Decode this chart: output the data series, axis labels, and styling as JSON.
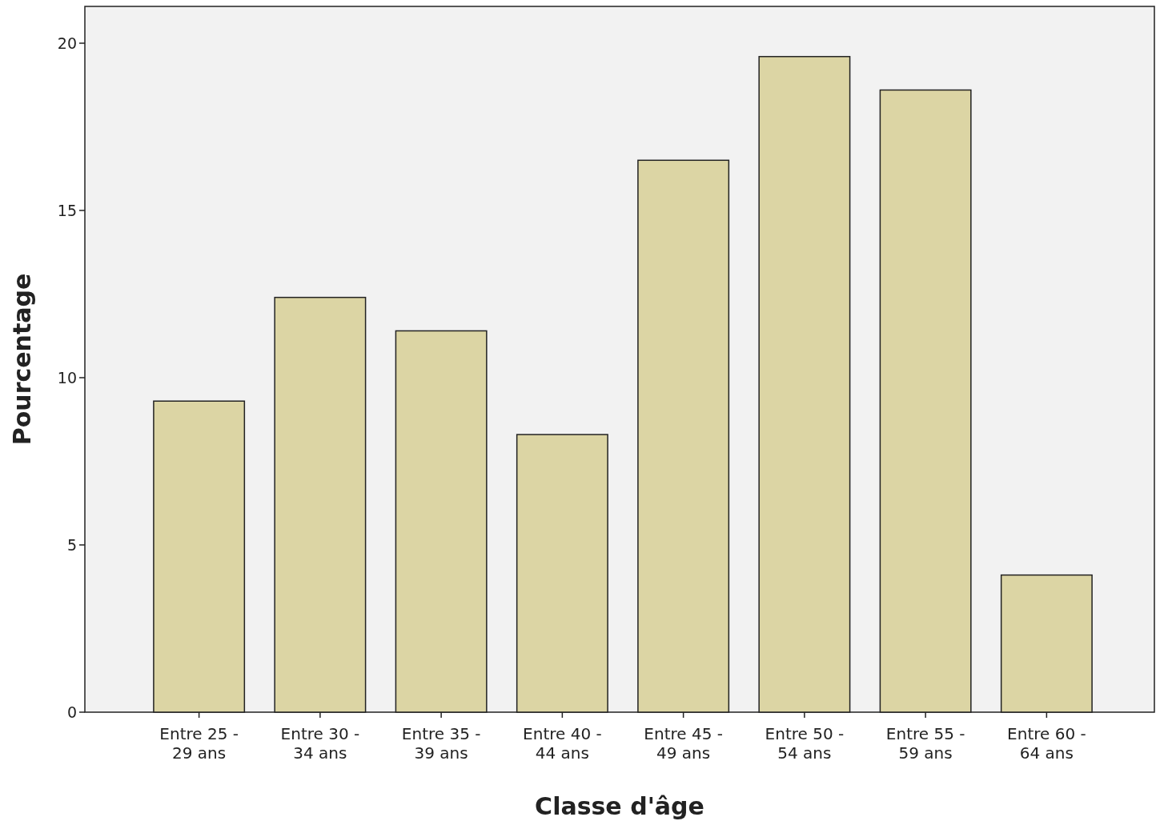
{
  "chart_data": {
    "type": "bar",
    "xlabel": "Classe d'âge",
    "ylabel": "Pourcentage",
    "categories": [
      "Entre 25 - 29 ans",
      "Entre 30 - 34 ans",
      "Entre 35 - 39 ans",
      "Entre 40 - 44 ans",
      "Entre 45 - 49 ans",
      "Entre 50 - 54 ans",
      "Entre 55 - 59 ans",
      "Entre 60 - 64 ans"
    ],
    "values": [
      9.3,
      12.4,
      11.4,
      8.3,
      16.5,
      19.6,
      18.6,
      4.1
    ],
    "color": "#dcd5a4",
    "ylim": [
      0,
      21.1
    ],
    "yticks": [
      0,
      5,
      10,
      15,
      20
    ],
    "grid": false
  }
}
